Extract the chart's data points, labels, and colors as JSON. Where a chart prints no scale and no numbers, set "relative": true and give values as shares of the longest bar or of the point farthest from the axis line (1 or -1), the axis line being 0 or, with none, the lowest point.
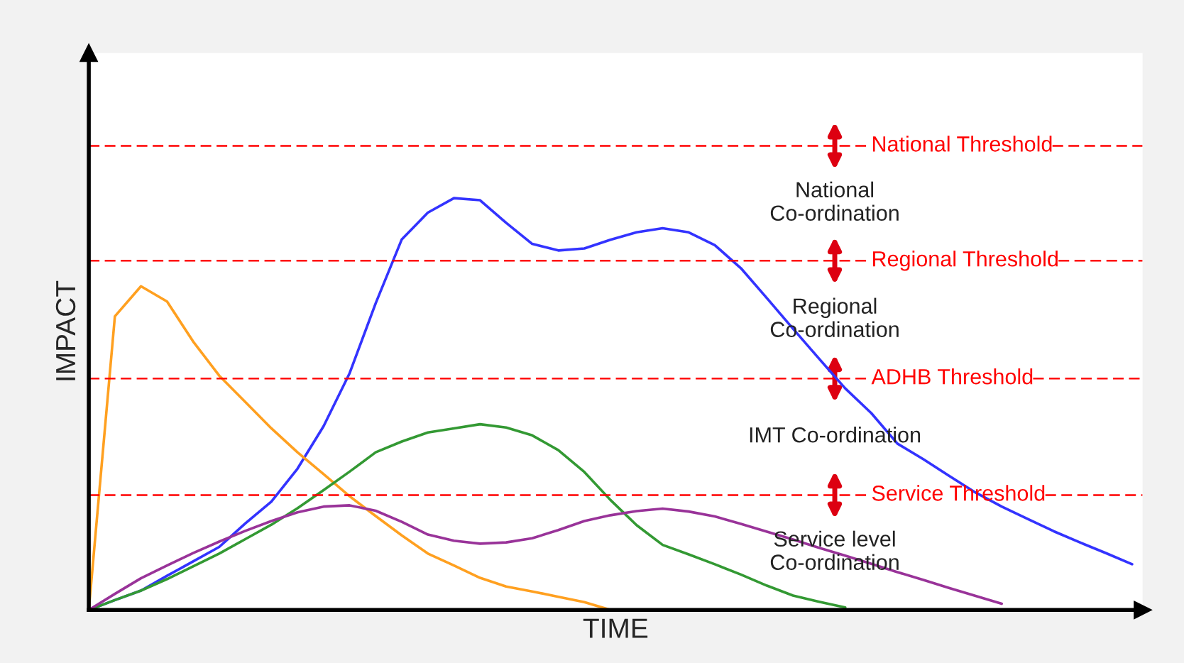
{
  "chart_data": {
    "type": "line",
    "relative": true,
    "xlabel": "TIME",
    "ylabel": "IMPACT",
    "tick_labels": false,
    "marker": "none",
    "line_style": "solid",
    "categories": [
      null,
      null,
      null,
      null,
      null,
      null,
      null,
      null,
      null,
      null,
      null,
      null,
      null,
      null,
      null,
      null,
      null,
      null,
      null,
      null,
      null,
      null,
      null,
      null,
      null,
      null,
      null,
      null,
      null,
      null,
      null,
      null,
      null,
      null,
      null,
      null,
      null,
      null,
      null,
      null,
      null
    ],
    "series": [
      {
        "color": "#3333ff",
        "values": [
          0,
          0.024,
          0.047,
          0.083,
          0.118,
          0.153,
          0.21,
          0.263,
          0.343,
          0.446,
          0.575,
          0.745,
          0.9,
          0.965,
          1,
          0.995,
          0.94,
          0.889,
          0.873,
          0.878,
          0.899,
          0.917,
          0.927,
          0.917,
          0.886,
          0.83,
          0.757,
          0.683,
          0.61,
          0.538,
          0.478,
          0.404,
          0.366,
          0.325,
          0.285,
          0.251,
          0.221,
          0.191,
          0.164,
          0.138,
          0.111
        ]
      },
      {
        "color": "#ffa020",
        "values": [
          0,
          0.713,
          0.786,
          0.749,
          0.652,
          0.569,
          0.505,
          0.441,
          0.383,
          0.33,
          0.276,
          0.228,
          0.181,
          0.137,
          0.108,
          0.078,
          0.057,
          0.045,
          0.032,
          0.019,
          0,
          null,
          null,
          null,
          null,
          null,
          null,
          null,
          null,
          null,
          null,
          null,
          null,
          null,
          null,
          null,
          null,
          null,
          null,
          null,
          null
        ]
      },
      {
        "color": "#339933",
        "values": [
          0,
          0.024,
          0.047,
          0.075,
          0.106,
          0.137,
          0.172,
          0.207,
          0.247,
          0.291,
          0.336,
          0.383,
          0.409,
          0.431,
          0.441,
          0.451,
          0.443,
          0.424,
          0.388,
          0.335,
          0.267,
          0.206,
          0.158,
          0.135,
          0.111,
          0.086,
          0.059,
          0.035,
          0.02,
          0.006,
          null,
          null,
          null,
          null,
          null,
          null,
          null,
          null,
          null,
          null,
          null
        ]
      },
      {
        "color": "#993399",
        "values": [
          0,
          0.039,
          0.077,
          0.108,
          0.138,
          0.166,
          0.192,
          0.216,
          0.237,
          0.251,
          0.254,
          0.241,
          0.214,
          0.183,
          0.168,
          0.161,
          0.164,
          0.174,
          0.194,
          0.216,
          0.23,
          0.24,
          0.246,
          0.239,
          0.227,
          0.209,
          0.19,
          0.171,
          0.151,
          0.132,
          0.112,
          0.092,
          0.073,
          0.053,
          0.034,
          0.015,
          null,
          null,
          null,
          null,
          null
        ]
      }
    ],
    "ref_lines": [
      {
        "axis": "y",
        "value": 1.127,
        "label": "National Threshold",
        "color": "#ff0000",
        "line_style": "dashed"
      },
      {
        "axis": "y",
        "value": 0.848,
        "label": "Regional Threshold",
        "color": "#ff0000",
        "line_style": "dashed"
      },
      {
        "axis": "y",
        "value": 0.562,
        "label": "ADHB Threshold",
        "color": "#ff0000",
        "line_style": "dashed"
      },
      {
        "axis": "y",
        "value": 0.279,
        "label": "Service Threshold",
        "color": "#ff0000",
        "line_style": "dashed"
      }
    ],
    "annotations": [
      "National\nCo-ordination",
      "Regional\nCo-ordination",
      "IMT Co-ordination",
      "Service level\nCo-ordination"
    ]
  }
}
